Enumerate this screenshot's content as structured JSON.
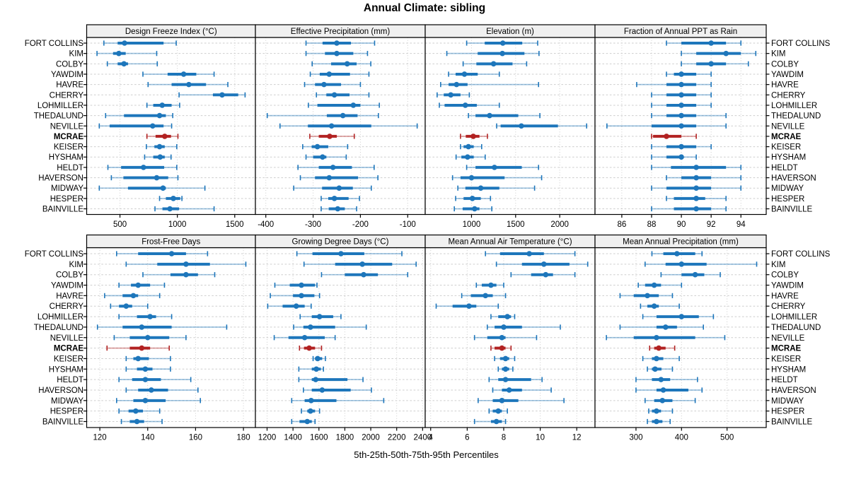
{
  "title": "Annual Climate: sibling",
  "caption": "5th-25th-50th-75th-95th Percentiles",
  "highlight_station": "MCRAE",
  "colors": {
    "series": "#1d76bb",
    "highlight": "#b22222",
    "strip_bg": "#f0f0f0",
    "grid": "#cdcdcd",
    "border": "#000000"
  },
  "stations": [
    "FORT COLLINS",
    "KIM",
    "COLBY",
    "YAWDIM",
    "HAVRE",
    "CHERRY",
    "LOHMILLER",
    "THEDALUND",
    "NEVILLE",
    "MCRAE",
    "KEISER",
    "HYSHAM",
    "HELDT",
    "HAVERSON",
    "MIDWAY",
    "HESPER",
    "BAINVILLE"
  ],
  "percentiles": [
    "5th",
    "25th",
    "50th",
    "75th",
    "95th"
  ],
  "chart_data": [
    {
      "type": "dotplot-interval",
      "slug": "design-freeze-index",
      "title": "Design Freeze Index (°C)",
      "row": 0,
      "col": 0,
      "ticks": [
        500,
        1000,
        1500
      ],
      "xlim": [
        210,
        1680
      ],
      "values": [
        [
          360,
          480,
          540,
          880,
          990
        ],
        [
          300,
          440,
          490,
          550,
          820
        ],
        [
          390,
          480,
          535,
          570,
          825
        ],
        [
          700,
          915,
          1055,
          1165,
          1320
        ],
        [
          745,
          950,
          1100,
          1250,
          1440
        ],
        [
          1015,
          1310,
          1390,
          1530,
          1590
        ],
        [
          735,
          790,
          868,
          950,
          1020
        ],
        [
          375,
          535,
          845,
          900,
          960
        ],
        [
          320,
          410,
          785,
          880,
          950
        ],
        [
          735,
          810,
          890,
          945,
          1005
        ],
        [
          730,
          800,
          845,
          890,
          995
        ],
        [
          715,
          790,
          850,
          890,
          945
        ],
        [
          395,
          510,
          705,
          885,
          995
        ],
        [
          425,
          530,
          820,
          920,
          1005
        ],
        [
          320,
          570,
          875,
          900,
          1240
        ],
        [
          845,
          900,
          965,
          1025,
          1040
        ],
        [
          805,
          870,
          935,
          1015,
          1320
        ]
      ]
    },
    {
      "type": "dotplot-interval",
      "slug": "effective-precipitation",
      "title": "Effective Precipitation (mm)",
      "row": 0,
      "col": 1,
      "ticks": [
        -400,
        -300,
        -200,
        -100
      ],
      "xlim": [
        -422,
        -63
      ],
      "values": [
        [
          -315,
          -280,
          -250,
          -220,
          -170
        ],
        [
          -315,
          -275,
          -250,
          -215,
          -185
        ],
        [
          -302,
          -262,
          -228,
          -208,
          -178
        ],
        [
          -306,
          -286,
          -266,
          -222,
          -182
        ],
        [
          -318,
          -296,
          -277,
          -241,
          -200
        ],
        [
          -293,
          -272,
          -255,
          -223,
          -182
        ],
        [
          -310,
          -291,
          -215,
          -200,
          -160
        ],
        [
          -397,
          -271,
          -237,
          -206,
          -162
        ],
        [
          -370,
          -311,
          -261,
          -177,
          -80
        ],
        [
          -307,
          -288,
          -265,
          -250,
          -213
        ],
        [
          -322,
          -303,
          -291,
          -268,
          -227
        ],
        [
          -315,
          -300,
          -280,
          -272,
          -230
        ],
        [
          -332,
          -288,
          -258,
          -218,
          -171
        ],
        [
          -327,
          -296,
          -266,
          -205,
          -163
        ],
        [
          -341,
          -281,
          -245,
          -216,
          -177
        ],
        [
          -283,
          -268,
          -255,
          -225,
          -202
        ],
        [
          -283,
          -267,
          -248,
          -233,
          -208
        ]
      ]
    },
    {
      "type": "dotplot-interval",
      "slug": "elevation",
      "title": "Elevation (m)",
      "row": 0,
      "col": 2,
      "ticks": [
        1000,
        1500,
        2000
      ],
      "xlim": [
        475,
        2400
      ],
      "values": [
        [
          945,
          1150,
          1355,
          1575,
          1750
        ],
        [
          720,
          1070,
          1350,
          1600,
          1765
        ],
        [
          905,
          1055,
          1250,
          1465,
          1625
        ],
        [
          740,
          820,
          920,
          1070,
          1315
        ],
        [
          650,
          740,
          830,
          955,
          1760
        ],
        [
          610,
          685,
          765,
          875,
          975
        ],
        [
          635,
          695,
          930,
          1060,
          1315
        ],
        [
          965,
          1045,
          1205,
          1530,
          1775
        ],
        [
          1285,
          1330,
          1565,
          1980,
          2305
        ],
        [
          875,
          935,
          1020,
          1090,
          1180
        ],
        [
          875,
          910,
          965,
          1025,
          1115
        ],
        [
          825,
          885,
          955,
          1025,
          1155
        ],
        [
          945,
          1045,
          1260,
          1570,
          1760
        ],
        [
          785,
          875,
          1000,
          1375,
          1795
        ],
        [
          845,
          930,
          1105,
          1315,
          1715
        ],
        [
          820,
          910,
          1010,
          1105,
          1215
        ],
        [
          805,
          900,
          1035,
          1090,
          1230
        ]
      ]
    },
    {
      "type": "dotplot-interval",
      "slug": "fraction-of-annual-ppt-as-rain",
      "title": "Fraction of Annual PPT as Rain",
      "row": 0,
      "col": 3,
      "ticks": [
        86,
        88,
        90,
        92,
        94
      ],
      "xlim": [
        84.2,
        95.7
      ],
      "values": [
        [
          89,
          90,
          92,
          93,
          94
        ],
        [
          90,
          91,
          93,
          94,
          95
        ],
        [
          90,
          91,
          92,
          93,
          94.5
        ],
        [
          89,
          89.5,
          90,
          91,
          92
        ],
        [
          87,
          89,
          90,
          91,
          92
        ],
        [
          88,
          89,
          90,
          91,
          92
        ],
        [
          88,
          89,
          90,
          91,
          92
        ],
        [
          88,
          89,
          90,
          91,
          93
        ],
        [
          85,
          88,
          90,
          91,
          93
        ],
        [
          88,
          88.1,
          89,
          90,
          91
        ],
        [
          88,
          89,
          90,
          91,
          92
        ],
        [
          88,
          89,
          90,
          90,
          91
        ],
        [
          88,
          89.3,
          91,
          93,
          94
        ],
        [
          89,
          90,
          91,
          92,
          94
        ],
        [
          88,
          89,
          91,
          92,
          94
        ],
        [
          89,
          89.5,
          91,
          91.6,
          93
        ],
        [
          88,
          89.5,
          91,
          92,
          93
        ]
      ]
    },
    {
      "type": "dotplot-interval",
      "slug": "frost-free-days",
      "title": "Frost-Free Days",
      "row": 1,
      "col": 0,
      "ticks": [
        120,
        140,
        160,
        180
      ],
      "xlim": [
        114.5,
        185
      ],
      "values": [
        [
          127,
          136,
          150,
          156,
          165
        ],
        [
          131,
          144,
          156,
          166,
          181
        ],
        [
          138,
          149.5,
          156,
          161,
          168
        ],
        [
          128,
          133,
          136,
          141,
          147
        ],
        [
          122,
          129.5,
          134,
          136,
          145
        ],
        [
          124.5,
          128,
          131,
          133.5,
          140
        ],
        [
          128,
          135.5,
          141,
          143.5,
          150
        ],
        [
          119,
          129.5,
          137.5,
          150,
          173
        ],
        [
          126,
          132.5,
          140,
          149,
          156
        ],
        [
          123,
          132.5,
          137.5,
          141,
          149
        ],
        [
          131,
          134,
          136,
          140.5,
          149.5
        ],
        [
          131,
          135.5,
          139,
          142,
          149.5
        ],
        [
          128,
          133.5,
          139,
          145.5,
          158
        ],
        [
          131,
          136,
          141.5,
          148.5,
          161
        ],
        [
          127,
          134,
          139,
          147.5,
          162
        ],
        [
          128,
          132,
          135,
          138,
          145
        ],
        [
          129,
          132.5,
          135.5,
          138.5,
          146
        ]
      ]
    },
    {
      "type": "dotplot-interval",
      "slug": "growing-degree-days",
      "title": "Growing Degree Days (°C)",
      "row": 1,
      "col": 1,
      "ticks": [
        1200,
        1400,
        1600,
        1800,
        2000,
        2200,
        2400
      ],
      "xlim": [
        1110,
        2420
      ],
      "values": [
        [
          1430,
          1550,
          1770,
          1950,
          2240
        ],
        [
          1485,
          1725,
          1935,
          2165,
          2350
        ],
        [
          1620,
          1800,
          1945,
          2055,
          2285
        ],
        [
          1260,
          1375,
          1465,
          1570,
          1585
        ],
        [
          1225,
          1400,
          1465,
          1565,
          1605
        ],
        [
          1205,
          1320,
          1425,
          1490,
          1540
        ],
        [
          1455,
          1545,
          1605,
          1710,
          1770
        ],
        [
          1405,
          1480,
          1535,
          1725,
          1965
        ],
        [
          1255,
          1365,
          1490,
          1645,
          1725
        ],
        [
          1450,
          1485,
          1525,
          1570,
          1620
        ],
        [
          1555,
          1570,
          1590,
          1625,
          1650
        ],
        [
          1445,
          1545,
          1580,
          1615,
          1635
        ],
        [
          1445,
          1545,
          1575,
          1820,
          1940
        ],
        [
          1480,
          1545,
          1625,
          1845,
          2005
        ],
        [
          1390,
          1490,
          1540,
          1735,
          2100
        ],
        [
          1465,
          1510,
          1535,
          1570,
          1605
        ],
        [
          1390,
          1450,
          1510,
          1545,
          1570
        ]
      ]
    },
    {
      "type": "dotplot-interval",
      "slug": "mean-annual-air-temperature",
      "title": "Mean Annual Air Temperature (°C)",
      "row": 1,
      "col": 2,
      "ticks": [
        4,
        6,
        8,
        10,
        12
      ],
      "xlim": [
        3.7,
        13.0
      ],
      "values": [
        [
          7.0,
          7.8,
          9.4,
          10.2,
          11.9
        ],
        [
          7.6,
          9.0,
          10.2,
          11.6,
          12.6
        ],
        [
          8.4,
          9.5,
          10.3,
          10.7,
          11.9
        ],
        [
          6.5,
          6.8,
          7.3,
          7.6,
          8.0
        ],
        [
          5.7,
          6.2,
          7.0,
          7.4,
          8.1
        ],
        [
          4.3,
          5.2,
          6.1,
          6.5,
          7.7
        ],
        [
          7.3,
          7.7,
          8.2,
          8.4,
          8.6
        ],
        [
          7.1,
          7.5,
          8.0,
          9.0,
          11.1
        ],
        [
          6.4,
          7.1,
          7.9,
          8.1,
          9.8
        ],
        [
          7.3,
          7.5,
          7.9,
          8.1,
          8.4
        ],
        [
          7.5,
          7.8,
          8.1,
          8.3,
          8.6
        ],
        [
          7.7,
          7.9,
          8.1,
          8.3,
          8.5
        ],
        [
          7.2,
          7.7,
          8.1,
          9.5,
          10.1
        ],
        [
          7.4,
          7.9,
          8.3,
          9.0,
          10.6
        ],
        [
          6.6,
          7.4,
          7.9,
          8.8,
          11.3
        ],
        [
          7.2,
          7.4,
          7.7,
          7.9,
          8.2
        ],
        [
          6.4,
          7.3,
          7.6,
          7.9,
          8.1
        ]
      ]
    },
    {
      "type": "dotplot-interval",
      "slug": "mean-annual-precipitation",
      "title": "Mean Annual Precipitation (mm)",
      "row": 1,
      "col": 3,
      "ticks": [
        300,
        400,
        500
      ],
      "xlim": [
        210,
        586
      ],
      "values": [
        [
          335,
          360,
          390,
          430,
          445
        ],
        [
          320,
          365,
          400,
          455,
          565
        ],
        [
          355,
          400,
          430,
          450,
          485
        ],
        [
          305,
          320,
          340,
          355,
          400
        ],
        [
          265,
          295,
          325,
          350,
          380
        ],
        [
          310,
          325,
          340,
          350,
          395
        ],
        [
          315,
          345,
          400,
          438,
          470
        ],
        [
          265,
          345,
          365,
          390,
          448
        ],
        [
          235,
          295,
          345,
          430,
          495
        ],
        [
          330,
          340,
          350,
          365,
          385
        ],
        [
          315,
          335,
          345,
          360,
          395
        ],
        [
          325,
          335,
          342,
          356,
          380
        ],
        [
          300,
          335,
          355,
          375,
          435
        ],
        [
          300,
          345,
          360,
          415,
          445
        ],
        [
          320,
          340,
          358,
          380,
          430
        ],
        [
          328,
          335,
          345,
          355,
          380
        ],
        [
          325,
          335,
          345,
          358,
          375
        ]
      ]
    }
  ]
}
